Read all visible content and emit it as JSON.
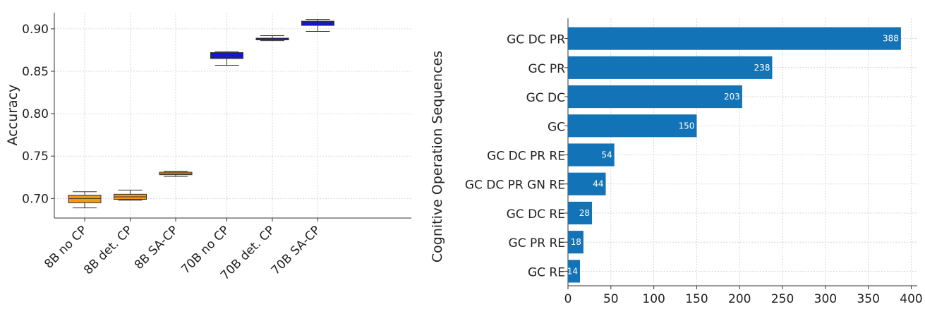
{
  "chart_data": [
    {
      "type": "box",
      "title": "",
      "xlabel": "",
      "ylabel": "Accuracy",
      "ylim": [
        0.677,
        0.919
      ],
      "yticks": [
        "0.70",
        "0.75",
        "0.80",
        "0.85",
        "0.90"
      ],
      "grid": true,
      "categories": [
        "8B no CP",
        "8B det. CP",
        "8B SA-CP",
        "70B no CP",
        "70B det. CP",
        "70B SA-CP"
      ],
      "boxes": [
        {
          "min": 0.689,
          "q1": 0.695,
          "median": 0.7,
          "q3": 0.704,
          "max": 0.708,
          "color": "#f39c12"
        },
        {
          "min": 0.698,
          "q1": 0.699,
          "median": 0.702,
          "q3": 0.705,
          "max": 0.71,
          "color": "#f39c12"
        },
        {
          "min": 0.726,
          "q1": 0.728,
          "median": 0.729,
          "q3": 0.731,
          "max": 0.732,
          "color": "#f39c12"
        },
        {
          "min": 0.857,
          "q1": 0.865,
          "median": 0.868,
          "q3": 0.872,
          "max": 0.873,
          "color": "#1111e8"
        },
        {
          "min": 0.886,
          "q1": 0.887,
          "median": 0.888,
          "q3": 0.889,
          "max": 0.892,
          "color": "#1111e8"
        },
        {
          "min": 0.897,
          "q1": 0.904,
          "median": 0.907,
          "q3": 0.909,
          "max": 0.911,
          "color": "#1111e8"
        }
      ]
    },
    {
      "type": "bar",
      "orientation": "horizontal",
      "title": "",
      "xlabel": "",
      "ylabel": "Cognitive Operation Sequences",
      "xlim": [
        0,
        407
      ],
      "xticks": [
        "0",
        "50",
        "100",
        "150",
        "200",
        "250",
        "300",
        "350",
        "400"
      ],
      "grid": true,
      "color": "#1373b7",
      "categories": [
        "GC DC PR",
        "GC PR",
        "GC DC",
        "GC",
        "GC DC PR RE",
        "GC DC PR GN RE",
        "GC DC RE",
        "GC PR RE",
        "GC RE"
      ],
      "values": [
        388,
        238,
        203,
        150,
        54,
        44,
        28,
        18,
        14
      ],
      "value_labels": [
        "388",
        "238",
        "203",
        "150",
        "54",
        "44",
        "28",
        "18",
        "14"
      ]
    }
  ]
}
